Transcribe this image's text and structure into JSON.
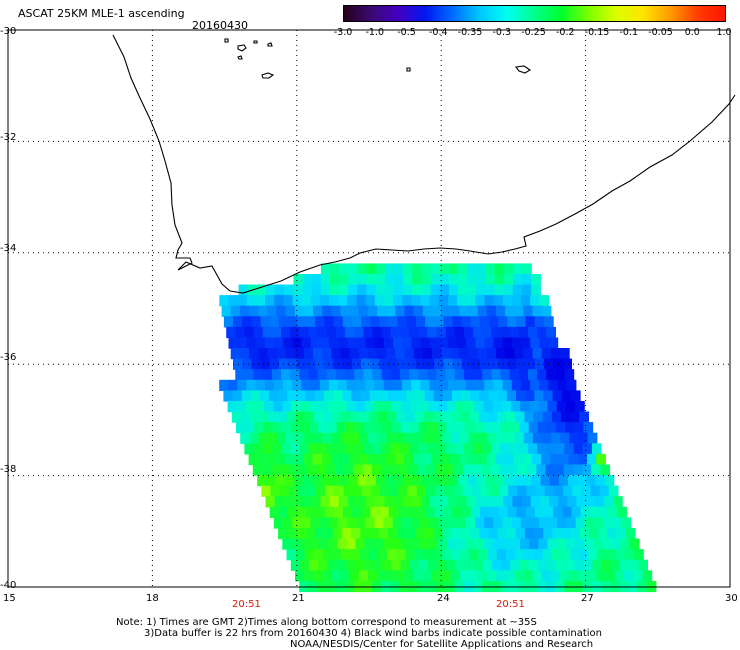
{
  "header": {
    "title": "ASCAT 25KM MLE-1 ascending",
    "date": "20160430"
  },
  "colorbar": {
    "colors": [
      "#240018",
      "#3a0a72",
      "#4400c0",
      "#0018f0",
      "#006cff",
      "#00c8ff",
      "#00fff0",
      "#00ff8c",
      "#00ff2c",
      "#7cff00",
      "#dcff00",
      "#ffe400",
      "#ff9a00",
      "#ff3c00",
      "#ff1400"
    ],
    "labels": [
      "-3.0",
      "-1.0",
      "-0.5",
      "-0.4",
      "-0.35",
      "-0.3",
      "-0.25",
      "-0.2",
      "-0.15",
      "-0.1",
      "-0.05",
      "0.0",
      "1.0"
    ]
  },
  "axes": {
    "lat_labels": [
      "-30",
      "-32",
      "-34",
      "-36",
      "-38",
      "-40"
    ],
    "lon_labels": [
      "15",
      "18",
      "21",
      "24",
      "27",
      "30"
    ]
  },
  "times": [
    "20:51",
    "20:51"
  ],
  "notes": [
    "Note: 1) Times are GMT 2)Times along bottom correspond to measurement at ~35S",
    "3)Data buffer is 22 hrs from 20160430 4) Black wind barbs indicate possible contamination",
    "NOAA/NESDIS/Center for Satellite Applications and Research"
  ],
  "chart_data": {
    "type": "heatmap",
    "title": "ASCAT 25KM MLE-1 ascending",
    "date": "20160430",
    "xlabel": "",
    "ylabel": "",
    "xlim": [
      15,
      30
    ],
    "ylim": [
      -40,
      -30
    ],
    "x_ticks": [
      15,
      18,
      21,
      24,
      27,
      30
    ],
    "y_ticks": [
      -30,
      -32,
      -34,
      -36,
      -38,
      -40
    ],
    "grid": true,
    "color_scale": [
      -3.0,
      -1.0,
      -0.5,
      -0.4,
      -0.35,
      -0.3,
      -0.25,
      -0.2,
      -0.15,
      -0.1,
      -0.05,
      0.0,
      1.0
    ],
    "swath_description": "Ascending swath off South Africa's south coast, approx 19.3E-28.5E, 34.0S-40S",
    "regions": [
      {
        "area": "near coast 34.5S-36.5S, 19.5E-25E",
        "value_range": [
          -0.5,
          -0.35
        ]
      },
      {
        "area": "east edge 35S-38S, 25.5E-27.5E",
        "value_range": [
          -0.5,
          -0.4
        ]
      },
      {
        "area": "central 36.5S-38.5S, 20E-24E",
        "value_range": [
          -0.25,
          -0.15
        ]
      },
      {
        "area": "south 38.5S-40S, 21E-24E",
        "value_range": [
          -0.2,
          -0.1
        ]
      },
      {
        "area": "southeast 38S-40S, 24E-28.5E",
        "value_range": [
          -0.35,
          -0.2
        ]
      },
      {
        "area": "western edge 38S-39.5S near 20E",
        "value_range": [
          -0.1,
          0.0
        ]
      }
    ],
    "time_labels": [
      {
        "lon": 20.2,
        "label": "20:51"
      },
      {
        "lon": 26.3,
        "label": "20:51"
      }
    ]
  }
}
